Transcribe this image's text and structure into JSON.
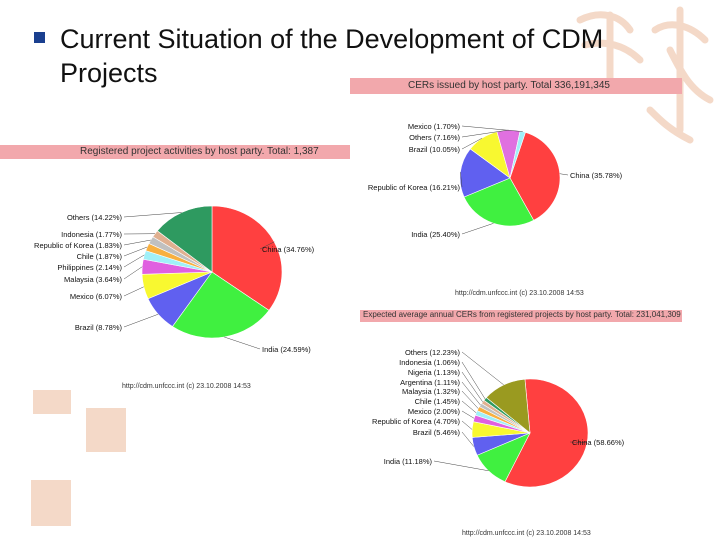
{
  "slide": {
    "title_line1": "Current Situation of the Development of CDM",
    "title_line2": "Projects"
  },
  "colors": {
    "band": "#f2a8ac",
    "bullet": "#1a3f8f",
    "decoration": "#f4d9c8"
  },
  "chart_data": [
    {
      "type": "pie",
      "title": "Registered project activities by host party. Total: 1,387",
      "source": "http://cdm.unfccc.int (c) 23.10.2008 14:53",
      "slices": [
        {
          "label": "China (34.76%)",
          "value": 34.76,
          "color": "#ff4040"
        },
        {
          "label": "India (24.59%)",
          "value": 24.59,
          "color": "#40f040"
        },
        {
          "label": "Brazil (8.78%)",
          "value": 8.78,
          "color": "#6060f0"
        },
        {
          "label": "Mexico (6.07%)",
          "value": 6.07,
          "color": "#f8f830"
        },
        {
          "label": "Malaysia (3.64%)",
          "value": 3.64,
          "color": "#e060e0"
        },
        {
          "label": "Philippines (2.14%)",
          "value": 2.14,
          "color": "#a0f0f8"
        },
        {
          "label": "Chile (1.87%)",
          "value": 1.87,
          "color": "#f8b040"
        },
        {
          "label": "Republic of Korea (1.83%)",
          "value": 1.83,
          "color": "#c0c0c0"
        },
        {
          "label": "Indonesia (1.77%)",
          "value": 1.77,
          "color": "#e0b090"
        },
        {
          "label": "Others (14.22%)",
          "value": 14.22,
          "color": "#2e9a60"
        }
      ]
    },
    {
      "type": "pie",
      "title": "CERs issued by host party. Total 336,191,345",
      "source": "http://cdm.unfccc.int (c) 23.10.2008 14:53",
      "slices": [
        {
          "label": "China (35.78%)",
          "value": 35.78,
          "color": "#ff4040"
        },
        {
          "label": "India (25.40%)",
          "value": 25.4,
          "color": "#40f040"
        },
        {
          "label": "Republic of Korea (16.21%)",
          "value": 16.21,
          "color": "#6060f0"
        },
        {
          "label": "Brazil (10.05%)",
          "value": 10.05,
          "color": "#f8f830"
        },
        {
          "label": "Others (7.16%)",
          "value": 7.16,
          "color": "#e070e0"
        },
        {
          "label": "Mexico (1.70%)",
          "value": 1.7,
          "color": "#a0f0f8"
        }
      ]
    },
    {
      "type": "pie",
      "title": "Expected average annual CERs from registered projects by host party. Total: 231,041,309",
      "source": "http://cdm.unfccc.int (c) 23.10.2008 14:53",
      "slices": [
        {
          "label": "China (58.66%)",
          "value": 58.66,
          "color": "#ff4040"
        },
        {
          "label": "India (11.18%)",
          "value": 11.18,
          "color": "#40f040"
        },
        {
          "label": "Brazil (5.46%)",
          "value": 5.46,
          "color": "#6060f0"
        },
        {
          "label": "Republic of Korea (4.70%)",
          "value": 4.7,
          "color": "#f8f830"
        },
        {
          "label": "Mexico (2.00%)",
          "value": 2.0,
          "color": "#e060e0"
        },
        {
          "label": "Chile (1.45%)",
          "value": 1.45,
          "color": "#a0f0f8"
        },
        {
          "label": "Malaysia (1.32%)",
          "value": 1.32,
          "color": "#f8b040"
        },
        {
          "label": "Argentina (1.11%)",
          "value": 1.11,
          "color": "#c0c0c0"
        },
        {
          "label": "Nigeria (1.13%)",
          "value": 1.13,
          "color": "#e0b090"
        },
        {
          "label": "Indonesia (1.06%)",
          "value": 1.06,
          "color": "#2e9a60"
        },
        {
          "label": "Others (12.23%)",
          "value": 12.23,
          "color": "#9a9a20"
        }
      ]
    }
  ]
}
